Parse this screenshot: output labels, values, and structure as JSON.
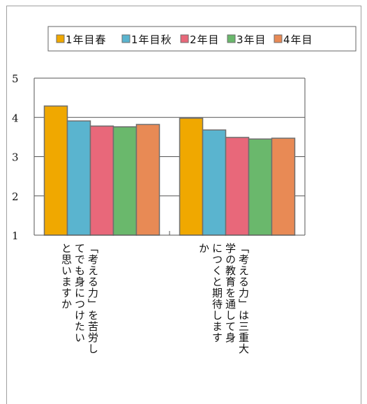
{
  "chart_data": {
    "type": "bar",
    "title": "",
    "xlabel": "",
    "ylabel": "",
    "ylim": [
      1,
      5
    ],
    "yticks": [
      "1",
      "2",
      "3",
      "4",
      "5"
    ],
    "grid": true,
    "legend_position": "top",
    "categories": [
      "「考える力」を苦労し\nてでも身につけたい\nと思いますか",
      "「考える力」は三重大\n学の教育を通して身\nにつくと期待します\nか"
    ],
    "series": [
      {
        "name": "1年目春",
        "color": "#f0a800",
        "values": [
          4.29,
          3.98
        ]
      },
      {
        "name": "1年目秋",
        "color": "#5ab4cf",
        "values": [
          3.91,
          3.68
        ]
      },
      {
        "name": "2年目",
        "color": "#e8687a",
        "values": [
          3.78,
          3.49
        ]
      },
      {
        "name": "3年目",
        "color": "#6ab86c",
        "values": [
          3.76,
          3.45
        ]
      },
      {
        "name": "4年目",
        "color": "#e88a55",
        "values": [
          3.82,
          3.47
        ]
      }
    ]
  }
}
